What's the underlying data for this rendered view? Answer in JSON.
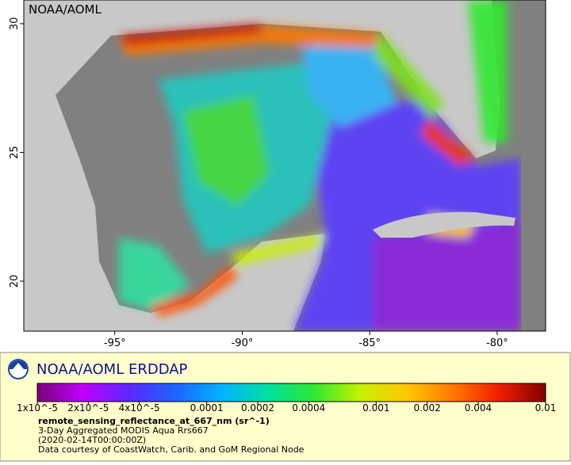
{
  "map": {
    "watermark": "NOAA/AOML",
    "xlim": [
      -98.57,
      -78.1
    ],
    "ylim": [
      18.06,
      30.92
    ],
    "xticks": [
      {
        "value": -95,
        "label": "-95°"
      },
      {
        "value": -90,
        "label": "-90°"
      },
      {
        "value": -85,
        "label": "-85°"
      },
      {
        "value": -80,
        "label": "-80°"
      }
    ],
    "yticks": [
      20,
      25,
      30
    ]
  },
  "colorbar": {
    "scale": "log",
    "lim": [
      1e-05,
      0.01
    ],
    "colors": [
      "#7a007a",
      "#c000ff",
      "#5a28ff",
      "#1e64ff",
      "#00b4ff",
      "#00e0a0",
      "#30e830",
      "#c8f000",
      "#ffc800",
      "#ff7800",
      "#f01e00",
      "#800000"
    ],
    "ticks": [
      {
        "value": 1e-05,
        "label": "1x10^-5"
      },
      {
        "value": 2e-05,
        "label": "2x10^-5"
      },
      {
        "value": 4e-05,
        "label": "4x10^-5"
      },
      0.0001,
      0.0002,
      0.0004,
      0.001,
      0.002,
      0.004,
      0.01
    ]
  },
  "footer": {
    "brand": "NOAA/AOML ERDDAP",
    "variable": "remote_sensing_reflectance_at_667_nm (sr^-1)",
    "lines": [
      "3-Day Aggregated MODIS Aqua Rrs667",
      "(2020-02-14T00:00:00Z)",
      "Data courtesy of CoastWatch, Carib. and GoM Regional Node"
    ]
  }
}
